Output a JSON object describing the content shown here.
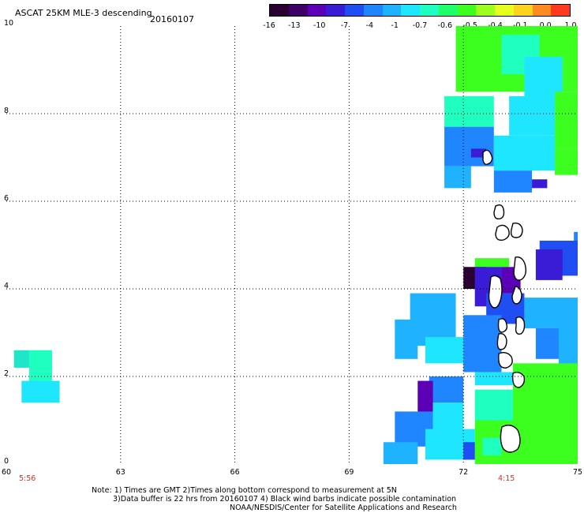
{
  "header": {
    "title": "ASCAT 25KM MLE-3 descending",
    "date": "20160107"
  },
  "colorbar": {
    "labels": [
      "-16",
      "-13",
      "-10",
      "-7",
      "-4",
      "-1",
      "-0.7",
      "-0.6",
      "-0.5",
      "-0.4",
      "-0.1",
      "0.0",
      "1.0"
    ],
    "colors": [
      "#2a0033",
      "#3d0066",
      "#5c00b8",
      "#3a1cd6",
      "#1f4ff2",
      "#1f86ff",
      "#1fb2ff",
      "#1fe6ff",
      "#1fffc0",
      "#1fff6a",
      "#3cff1f",
      "#9eff1f",
      "#e6ff1f",
      "#ffd21f",
      "#ff8a1f",
      "#ff3a1f"
    ]
  },
  "axes": {
    "x_ticks": [
      "60",
      "63",
      "66",
      "69",
      "72",
      "75"
    ],
    "y_ticks": [
      "0",
      "2",
      "4",
      "6",
      "8",
      "10"
    ],
    "x_range": [
      60,
      75
    ],
    "y_range": [
      0,
      10
    ],
    "grid": "dotted"
  },
  "times": {
    "left": "5:56",
    "right": "4:15"
  },
  "notes": {
    "line1": "Note: 1) Times are GMT 2)Times along bottom correspond to measurement at 5N",
    "line2": "3)Data buffer is 22 hrs from 20160107 4) Black wind barbs indicate possible contamination",
    "line3": "NOAA/NESDIS/Center for Satellite Applications and Research"
  },
  "swaths": [
    {
      "name": "west-patch",
      "cells": [
        [
          60.2,
          2.2,
          60.6,
          2.6,
          "#1fe6c8"
        ],
        [
          60.6,
          1.8,
          61.2,
          2.6,
          "#1fffc0"
        ],
        [
          60.4,
          1.4,
          61.4,
          1.9,
          "#1fe6ff"
        ]
      ]
    },
    {
      "name": "east-swath",
      "cells": [
        [
          71.8,
          8.5,
          75.0,
          10.0,
          "#3cff1f"
        ],
        [
          73.0,
          8.9,
          74.0,
          9.8,
          "#1fffc0"
        ],
        [
          73.6,
          8.3,
          74.6,
          9.3,
          "#1fe6ff"
        ],
        [
          73.2,
          7.5,
          74.4,
          8.4,
          "#1fe6ff"
        ],
        [
          74.4,
          7.2,
          75.0,
          8.5,
          "#3cff1f"
        ],
        [
          71.5,
          7.7,
          72.8,
          8.4,
          "#1fffc0"
        ],
        [
          71.5,
          6.8,
          72.8,
          7.7,
          "#1f86ff"
        ],
        [
          72.2,
          7.0,
          72.6,
          7.2,
          "#3a1cd6"
        ],
        [
          71.5,
          6.3,
          72.2,
          6.8,
          "#1fb2ff"
        ],
        [
          72.8,
          6.7,
          74.4,
          7.5,
          "#1fe6ff"
        ],
        [
          74.4,
          6.6,
          75.0,
          7.2,
          "#3cff1f"
        ],
        [
          72.8,
          6.2,
          73.8,
          6.7,
          "#1f86ff"
        ],
        [
          73.8,
          6.3,
          74.2,
          6.5,
          "#3a1cd6"
        ],
        [
          74.9,
          4.7,
          75.0,
          5.3,
          "#1f86ff"
        ],
        [
          74.0,
          4.3,
          75.0,
          5.1,
          "#1f4ff2"
        ],
        [
          73.9,
          4.2,
          74.6,
          4.9,
          "#3a1cd6"
        ],
        [
          72.3,
          4.5,
          73.2,
          4.7,
          "#3cff1f"
        ],
        [
          72.0,
          4.0,
          72.6,
          4.5,
          "#2a0033"
        ],
        [
          72.3,
          3.6,
          73.0,
          4.5,
          "#3a1cd6"
        ],
        [
          73.0,
          3.9,
          73.5,
          4.5,
          "#5c00b8"
        ],
        [
          72.6,
          3.2,
          73.6,
          3.9,
          "#1f4ff2"
        ],
        [
          70.6,
          2.7,
          71.8,
          3.9,
          "#1fb2ff"
        ],
        [
          70.2,
          2.4,
          70.8,
          3.3,
          "#1fb2ff"
        ],
        [
          71.0,
          2.3,
          72.0,
          2.9,
          "#1fe6ff"
        ],
        [
          72.0,
          2.1,
          73.0,
          3.4,
          "#1f86ff"
        ],
        [
          73.6,
          3.1,
          75.0,
          3.8,
          "#1fb2ff"
        ],
        [
          73.9,
          2.4,
          74.8,
          3.1,
          "#1f86ff"
        ],
        [
          74.5,
          2.0,
          75.0,
          3.4,
          "#1fb2ff"
        ],
        [
          72.3,
          1.8,
          73.3,
          2.1,
          "#1fe6ff"
        ],
        [
          73.3,
          1.0,
          75.0,
          2.3,
          "#3cff1f"
        ],
        [
          72.3,
          1.0,
          73.3,
          1.7,
          "#1fffc0"
        ],
        [
          71.1,
          1.4,
          72.0,
          2.0,
          "#1f86ff"
        ],
        [
          70.8,
          1.1,
          71.2,
          1.9,
          "#5c00b8"
        ],
        [
          71.2,
          0.7,
          72.0,
          1.4,
          "#1fe6ff"
        ],
        [
          70.2,
          0.4,
          71.2,
          1.2,
          "#1f86ff"
        ],
        [
          69.9,
          0.0,
          70.8,
          0.5,
          "#1fb2ff"
        ],
        [
          71.0,
          0.1,
          72.3,
          0.8,
          "#1fe6ff"
        ],
        [
          72.0,
          0.1,
          72.4,
          0.5,
          "#1f4ff2"
        ],
        [
          72.3,
          0.0,
          75.0,
          1.0,
          "#3cff1f"
        ],
        [
          72.5,
          0.2,
          73.0,
          0.6,
          "#1fffc0"
        ]
      ]
    }
  ]
}
